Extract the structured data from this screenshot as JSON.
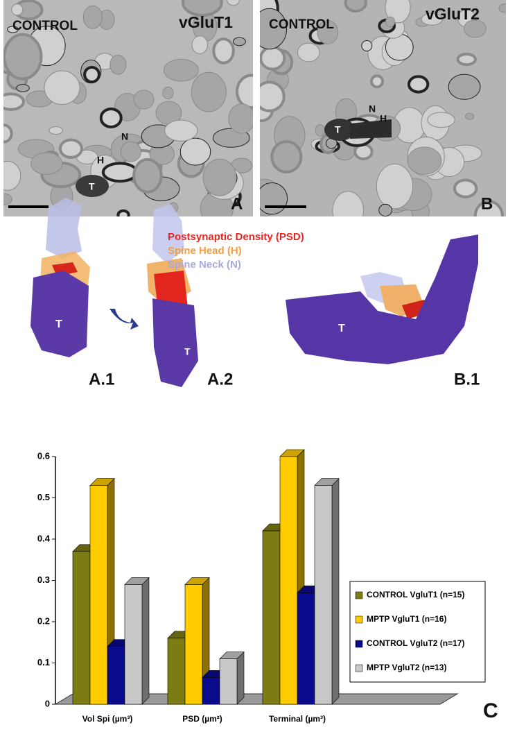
{
  "panels": [
    {
      "letter": "A",
      "condition": "CONTROL",
      "marker": "vGluT1",
      "labels": [
        "N",
        "H",
        "T"
      ]
    },
    {
      "letter": "B",
      "condition": "CONTROL",
      "marker": "vGluT2",
      "labels": [
        "N",
        "H",
        "T"
      ]
    }
  ],
  "reconstruction": {
    "legend": [
      "Postsynaptic Density (PSD)",
      "Spine Head (H)",
      "Spine Neck (N)"
    ],
    "legend_colors": [
      "#e8251e",
      "#f0a040",
      "#a8a8e0"
    ],
    "views": [
      {
        "label": "A.1",
        "terminal": "T"
      },
      {
        "label": "A.2",
        "terminal": "T"
      },
      {
        "label": "B.1",
        "terminal": "T"
      }
    ]
  },
  "chart_data": {
    "type": "bar3d",
    "panel_label": "C",
    "categories": [
      "Vol Spi (µm³)",
      "PSD (µm²)",
      "Terminal (µm³)"
    ],
    "series": [
      {
        "name": "CONTROL VgluT1 (n=15)",
        "color": "#7c7c14",
        "values": [
          0.37,
          0.16,
          0.42
        ]
      },
      {
        "name": "MPTP VgluT1 (n=16)",
        "color": "#ffcc00",
        "values": [
          0.53,
          0.29,
          0.6
        ]
      },
      {
        "name": "CONTROL VgluT2 (n=17)",
        "color": "#0a0a8c",
        "values": [
          0.14,
          0.065,
          0.27
        ]
      },
      {
        "name": "MPTP VgluT2 (n=13)",
        "color": "#c8c8c8",
        "values": [
          0.29,
          0.11,
          0.53
        ]
      }
    ],
    "ylim": [
      0,
      0.6
    ],
    "yticks": [
      0,
      0.1,
      0.2,
      0.3,
      0.4,
      0.5,
      0.6
    ],
    "legend": "right"
  }
}
